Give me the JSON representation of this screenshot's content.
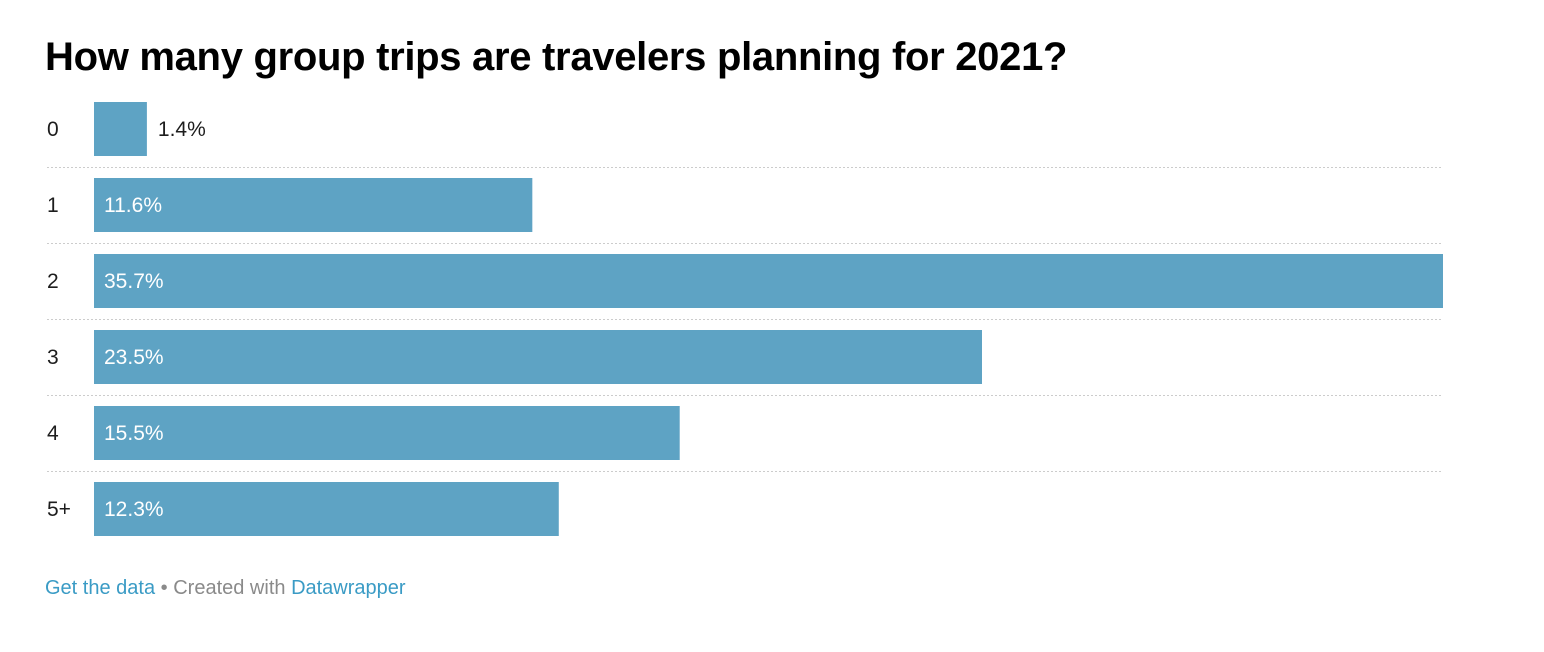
{
  "colors": {
    "bar": "#5ea3c4",
    "link": "#3a9bc5",
    "grid": "#cccccc",
    "inside_label": "#ffffff",
    "outside_label": "#1d1d1d"
  },
  "chart_data": {
    "type": "bar",
    "orientation": "horizontal",
    "title": "How many group trips are travelers planning for 2021?",
    "categories": [
      "0",
      "1",
      "2",
      "3",
      "4",
      "5+"
    ],
    "values": [
      1.4,
      11.6,
      35.7,
      23.5,
      15.5,
      12.3
    ],
    "value_labels": [
      "1.4%",
      "11.6%",
      "35.7%",
      "23.5%",
      "15.5%",
      "12.3%"
    ],
    "unit": "%",
    "xlim": [
      0,
      35.7
    ],
    "grid": false,
    "row_separators": "dotted",
    "legend": "none"
  },
  "footer": {
    "get_data_label": "Get the data",
    "separator": "•",
    "created_with_label": "Created with",
    "datawrapper_label": "Datawrapper"
  }
}
